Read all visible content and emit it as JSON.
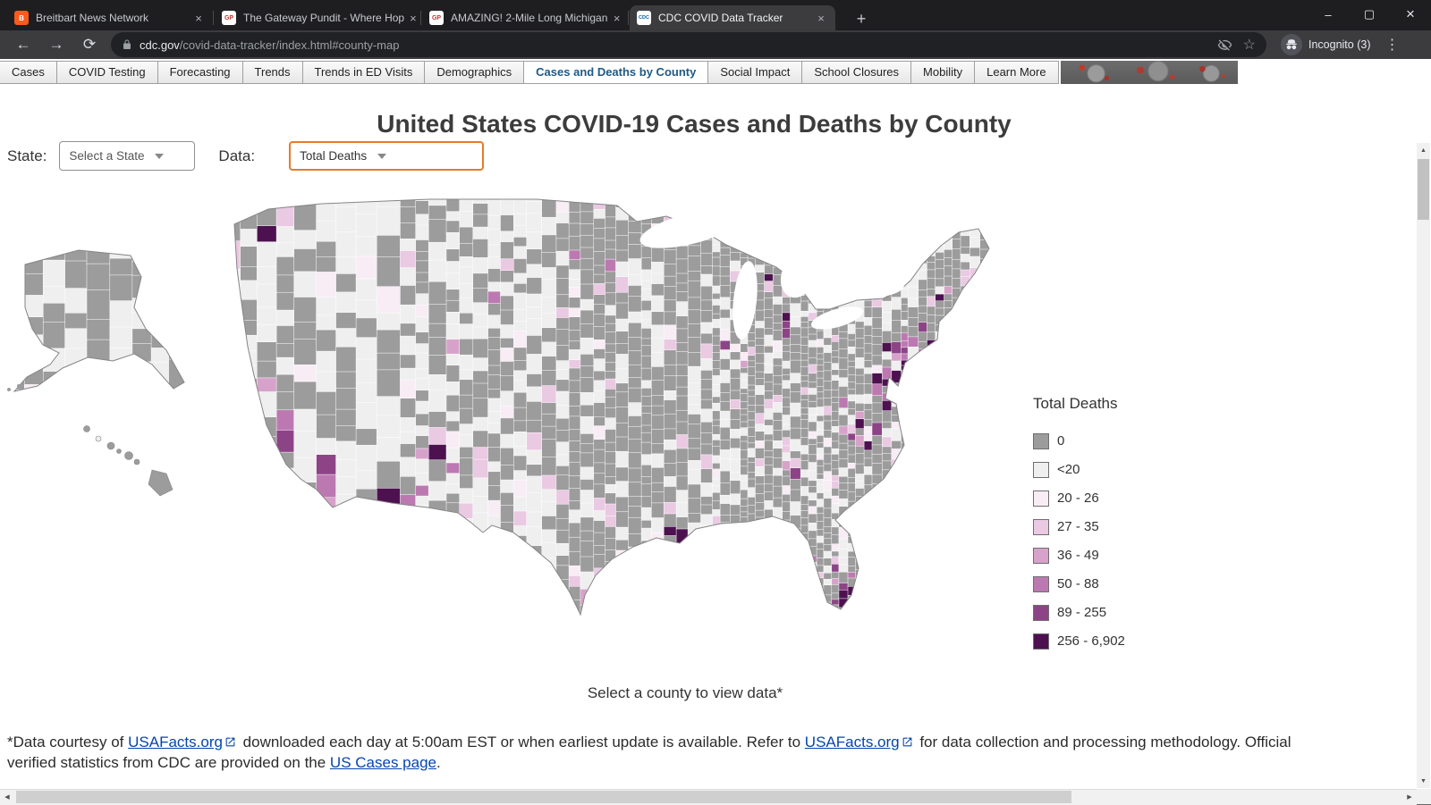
{
  "browser": {
    "tabs": [
      {
        "title": "Breitbart News Network",
        "favicon": "B",
        "favicon_bg": "#f75b1e",
        "favicon_color": "#ffffff"
      },
      {
        "title": "The Gateway Pundit - Where Hop",
        "favicon": "GP",
        "favicon_bg": "#ffffff",
        "favicon_color": "#bf3436"
      },
      {
        "title": "AMAZING! 2-Mile Long Michigan",
        "favicon": "GP",
        "favicon_bg": "#ffffff",
        "favicon_color": "#bf3436"
      },
      {
        "title": "CDC COVID Data Tracker",
        "favicon": "CDC",
        "favicon_bg": "#ffffff",
        "favicon_color": "#005eaa"
      }
    ],
    "window_controls": {
      "minimize": "–",
      "maximize": "▢",
      "close": "×"
    },
    "nav": {
      "back": "←",
      "forward": "→",
      "reload": "⟳",
      "menu": "⋮",
      "new_tab": "+",
      "star": "☆"
    },
    "url": {
      "host": "cdc.gov",
      "path": "/covid-data-tracker/index.html#county-map"
    },
    "incognito_label": "Incognito (3)"
  },
  "site_nav": {
    "items": [
      {
        "label": "Cases"
      },
      {
        "label": "COVID Testing"
      },
      {
        "label": "Forecasting"
      },
      {
        "label": "Trends"
      },
      {
        "label": "Trends in ED Visits"
      },
      {
        "label": "Demographics"
      },
      {
        "label": "Cases and Deaths by County"
      },
      {
        "label": "Social Impact"
      },
      {
        "label": "School Closures"
      },
      {
        "label": "Mobility"
      },
      {
        "label": "Learn More"
      }
    ],
    "active_index": 6
  },
  "page": {
    "title": "United States COVID-19 Cases and Deaths by County",
    "controls": {
      "state_label": "State:",
      "state_value": "Select a State",
      "data_label": "Data:",
      "data_value": "Total Deaths"
    },
    "map_caption": "Select a county to view data*",
    "footnote": {
      "t1": "*Data courtesy of ",
      "link1": "USAFacts.org",
      "t2": "  downloaded each day at 5:00am EST or when earliest update is available. Refer to ",
      "link2": "USAFacts.org",
      "t3": "  for data collection and processing methodology. Official verified statistics from CDC are provided on the ",
      "link3": "US Cases page",
      "t4": "."
    }
  },
  "chart_data": {
    "type": "heatmap",
    "subtype": "choropleth-us-counties",
    "title": "Total Deaths",
    "legend_position": "right",
    "legend": [
      {
        "label": "0",
        "color": "#9c9c9c"
      },
      {
        "label": "<20",
        "color": "#efefef"
      },
      {
        "label": "20 - 26",
        "color": "#f8ecf5"
      },
      {
        "label": "27 - 35",
        "color": "#eac9e2"
      },
      {
        "label": "36 - 49",
        "color": "#d7a2ca"
      },
      {
        "label": "50 - 88",
        "color": "#bc79b1"
      },
      {
        "label": "89 - 255",
        "color": "#8d4487"
      },
      {
        "label": "256 - 6,902",
        "color": "#4d1150"
      }
    ]
  }
}
